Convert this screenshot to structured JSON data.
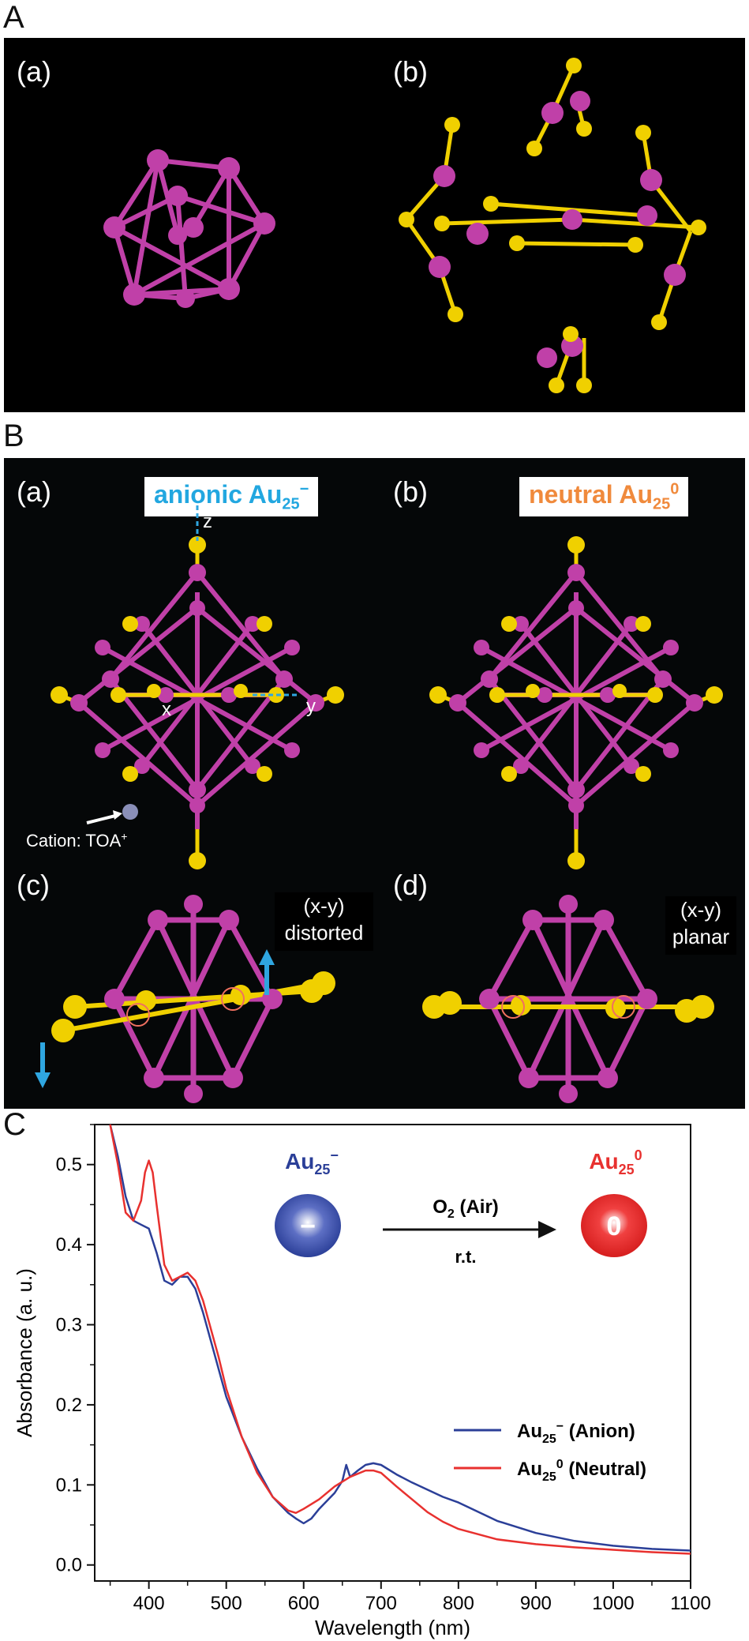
{
  "panelA": {
    "letter": "A",
    "sub_a": "(a)",
    "sub_b": "(b)"
  },
  "panelB": {
    "letter": "B",
    "sub_a": "(a)",
    "sub_b": "(b)",
    "sub_c": "(c)",
    "sub_d": "(d)",
    "anionic_title": "anionic Au",
    "anionic_sub": "25",
    "anionic_sup": "−",
    "neutral_title": "neutral Au",
    "neutral_sub": "25",
    "neutral_sup": "0",
    "axis_z": "z",
    "axis_x": "x",
    "axis_y": "y",
    "cation_label": "Cation: TOA",
    "cation_sup": "+",
    "distorted_line1": "(x-y)",
    "distorted_line2": "distorted",
    "planar_line1": "(x-y)",
    "planar_line2": "planar",
    "colors": {
      "gold": "#f0d000",
      "magenta": "#c040a8",
      "arrow_blue": "#2fa6e0",
      "anionic_text": "#22a7e0",
      "neutral_text": "#f08a3c"
    }
  },
  "panelC": {
    "letter": "C",
    "scheme": {
      "left_label": "Au",
      "left_sub": "25",
      "left_sup": "−",
      "left_symbol": "−",
      "right_label": "Au",
      "right_sub": "25",
      "right_sup": "0",
      "right_symbol": "0",
      "arrow_top": "O",
      "arrow_top_sub": "2",
      "arrow_top_rest": " (Air)",
      "arrow_bottom": "r.t."
    },
    "colors": {
      "anion": "#2b3f98",
      "neutral": "#e8312f"
    }
  },
  "chart_data": {
    "type": "line",
    "xlabel": "Wavelength (nm)",
    "ylabel": "Absorbance (a. u.)",
    "xlim": [
      330,
      1100
    ],
    "ylim": [
      -0.02,
      0.55
    ],
    "xticks": [
      400,
      500,
      600,
      700,
      800,
      900,
      1000,
      1100
    ],
    "yticks": [
      0.0,
      0.1,
      0.2,
      0.3,
      0.4,
      0.5
    ],
    "xtick_labels": [
      "400",
      "500",
      "600",
      "700",
      "800",
      "900",
      "1000",
      "1100"
    ],
    "ytick_labels": [
      "0.0",
      "0.1",
      "0.2",
      "0.3",
      "0.4",
      "0.5"
    ],
    "legend_position": "right",
    "series": [
      {
        "name": "Au25− (Anion)",
        "legend_main": "Au",
        "legend_sub": "25",
        "legend_sup": "−",
        "legend_rest": " (Anion)",
        "color": "#2b3f98",
        "x": [
          350,
          360,
          370,
          380,
          390,
          400,
          410,
          420,
          430,
          440,
          450,
          460,
          470,
          480,
          490,
          500,
          520,
          540,
          560,
          580,
          590,
          600,
          610,
          620,
          640,
          650,
          655,
          660,
          670,
          680,
          690,
          700,
          720,
          740,
          760,
          780,
          800,
          850,
          900,
          950,
          1000,
          1050,
          1100
        ],
        "y": [
          0.55,
          0.51,
          0.46,
          0.43,
          0.425,
          0.42,
          0.39,
          0.355,
          0.35,
          0.36,
          0.36,
          0.345,
          0.315,
          0.28,
          0.245,
          0.21,
          0.16,
          0.12,
          0.085,
          0.065,
          0.058,
          0.052,
          0.058,
          0.07,
          0.09,
          0.105,
          0.125,
          0.11,
          0.118,
          0.125,
          0.127,
          0.125,
          0.113,
          0.103,
          0.094,
          0.085,
          0.078,
          0.055,
          0.04,
          0.03,
          0.024,
          0.02,
          0.018
        ]
      },
      {
        "name": "Au250 (Neutral)",
        "legend_main": "Au",
        "legend_sub": "25",
        "legend_sup": "0",
        "legend_rest": " (Neutral)",
        "color": "#e8312f",
        "x": [
          350,
          360,
          370,
          380,
          390,
          395,
          400,
          405,
          410,
          420,
          430,
          440,
          450,
          460,
          470,
          480,
          490,
          500,
          520,
          540,
          560,
          580,
          590,
          600,
          620,
          640,
          660,
          680,
          690,
          700,
          720,
          740,
          760,
          780,
          800,
          850,
          900,
          950,
          1000,
          1050,
          1100
        ],
        "y": [
          0.55,
          0.5,
          0.44,
          0.43,
          0.455,
          0.49,
          0.505,
          0.49,
          0.45,
          0.375,
          0.355,
          0.36,
          0.365,
          0.355,
          0.33,
          0.295,
          0.26,
          0.22,
          0.16,
          0.115,
          0.085,
          0.068,
          0.065,
          0.07,
          0.082,
          0.098,
          0.11,
          0.118,
          0.118,
          0.115,
          0.098,
          0.082,
          0.066,
          0.054,
          0.045,
          0.032,
          0.026,
          0.022,
          0.019,
          0.016,
          0.014
        ]
      }
    ]
  }
}
